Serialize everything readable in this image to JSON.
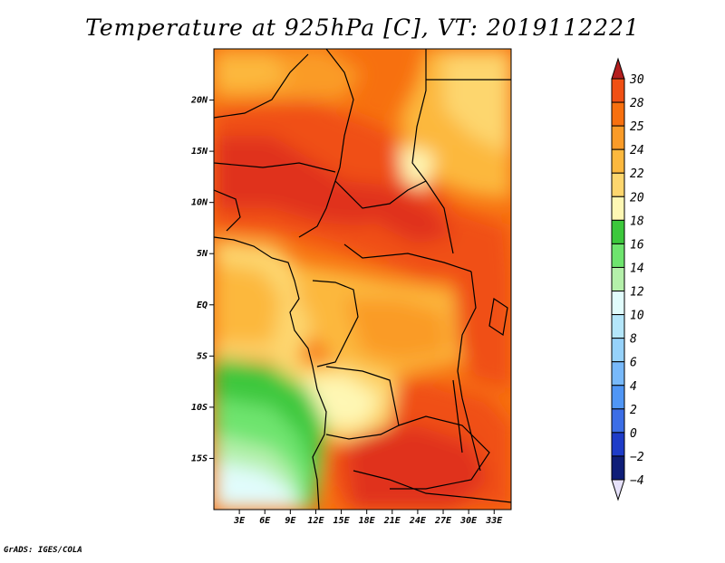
{
  "title": "Temperature at 925hPa [C], VT: 2019112221",
  "credit": "GrADS: IGES/COLA",
  "map": {
    "lon_range": [
      0,
      35
    ],
    "lat_range": [
      -20,
      25
    ],
    "lat_ticks": [
      {
        "value": 20,
        "label": "20N"
      },
      {
        "value": 15,
        "label": "15N"
      },
      {
        "value": 10,
        "label": "10N"
      },
      {
        "value": 5,
        "label": "5N"
      },
      {
        "value": 0,
        "label": "EQ"
      },
      {
        "value": -5,
        "label": "5S"
      },
      {
        "value": -10,
        "label": "10S"
      },
      {
        "value": -15,
        "label": "15S"
      }
    ],
    "lon_ticks": [
      {
        "value": 3,
        "label": "3E"
      },
      {
        "value": 6,
        "label": "6E"
      },
      {
        "value": 9,
        "label": "9E"
      },
      {
        "value": 12,
        "label": "12E"
      },
      {
        "value": 15,
        "label": "15E"
      },
      {
        "value": 18,
        "label": "18E"
      },
      {
        "value": 21,
        "label": "21E"
      },
      {
        "value": 24,
        "label": "24E"
      },
      {
        "value": 27,
        "label": "27E"
      },
      {
        "value": 30,
        "label": "30E"
      },
      {
        "value": 33,
        "label": "33E"
      }
    ]
  },
  "colorbar": {
    "levels": [
      {
        "label": "30",
        "color": "#e0321e"
      },
      {
        "label": "28",
        "color": "#f05014"
      },
      {
        "label": "25",
        "color": "#f7700f"
      },
      {
        "label": "24",
        "color": "#fa9b28"
      },
      {
        "label": "22",
        "color": "#fcb83e"
      },
      {
        "label": "20",
        "color": "#fdd66e"
      },
      {
        "label": "18",
        "color": "#fef7b4"
      },
      {
        "label": "16",
        "color": "#3cc83c"
      },
      {
        "label": "14",
        "color": "#6ee46e"
      },
      {
        "label": "12",
        "color": "#b4f0aa"
      },
      {
        "label": "10",
        "color": "#e1fcfc"
      },
      {
        "label": "8",
        "color": "#b4e6fa"
      },
      {
        "label": "6",
        "color": "#96d2fa"
      },
      {
        "label": "4",
        "color": "#78b9fa"
      },
      {
        "label": "2",
        "color": "#5096f5"
      },
      {
        "label": "0",
        "color": "#3c6ee6"
      },
      {
        "label": "−2",
        "color": "#1e3cc8"
      },
      {
        "label": "−4",
        "color": "#0f1e78"
      }
    ],
    "top_color": "#b41e1e",
    "bottom_color": "#e6e1fa"
  }
}
